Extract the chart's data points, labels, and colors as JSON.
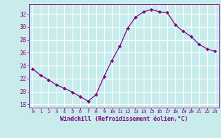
{
  "x": [
    0,
    1,
    2,
    3,
    4,
    5,
    6,
    7,
    8,
    9,
    10,
    11,
    12,
    13,
    14,
    15,
    16,
    17,
    18,
    19,
    20,
    21,
    22,
    23
  ],
  "y": [
    23.5,
    22.5,
    21.8,
    21.0,
    20.5,
    19.9,
    19.2,
    18.5,
    19.5,
    22.3,
    24.8,
    27.0,
    29.8,
    31.5,
    32.3,
    32.7,
    32.3,
    32.2,
    30.3,
    29.3,
    28.5,
    27.3,
    26.6,
    26.2
  ],
  "line_color": "#800080",
  "marker_color": "#800080",
  "bg_color": "#c8ecec",
  "grid_color": "#aadddd",
  "xlabel": "Windchill (Refroidissement éolien,°C)",
  "xlabel_color": "#800080",
  "tick_color": "#800080",
  "ylim": [
    17.5,
    33.5
  ],
  "xlim": [
    -0.5,
    23.5
  ],
  "yticks": [
    18,
    20,
    22,
    24,
    26,
    28,
    30,
    32
  ],
  "xticks": [
    0,
    1,
    2,
    3,
    4,
    5,
    6,
    7,
    8,
    9,
    10,
    11,
    12,
    13,
    14,
    15,
    16,
    17,
    18,
    19,
    20,
    21,
    22,
    23
  ]
}
